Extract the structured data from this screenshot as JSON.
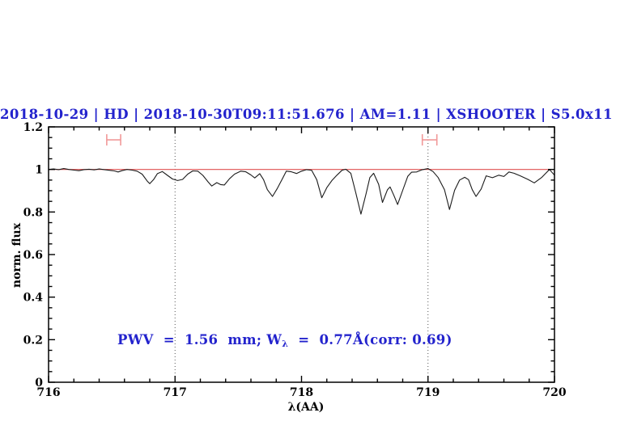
{
  "header": {
    "title": "2018-10-29 | HD | 2018-10-30T09:11:51.676 | AM=1.11 | XSHOOTER | S5.0x11",
    "title_color": "#2323cd"
  },
  "annotation": {
    "pre": "PWV  =  1.56  mm; W",
    "sub": "λ",
    "post": "  =  0.77Å(corr: 0.69)",
    "color": "#2323cd"
  },
  "chart_data": {
    "type": "line",
    "title": "2018-10-29 | HD | 2018-10-30T09:11:51.676 | AM=1.11 | XSHOOTER | S5.0x11",
    "xlabel": "λ(AA)",
    "ylabel": "norm. flux",
    "xlim": [
      716,
      720
    ],
    "ylim": [
      0,
      1.2
    ],
    "grid": "off",
    "x_major_ticks": [
      716,
      717,
      718,
      719,
      720
    ],
    "x_tick_labels": [
      "716",
      "717",
      "718",
      "719",
      "720"
    ],
    "x_minor_step": 0.2,
    "y_major_ticks": [
      0,
      0.2,
      0.4,
      0.6,
      0.8,
      1,
      1.2
    ],
    "y_tick_labels": [
      "0",
      "0.2",
      "0.4",
      "0.6",
      "0.8",
      "1",
      "1.2"
    ],
    "y_minor_step": 0.05,
    "dotted_vlines": [
      717,
      719
    ],
    "continuum_line": {
      "flux": 1.0,
      "color": "#e05050"
    },
    "range_markers": [
      {
        "x_start": 716.46,
        "x_end": 716.57,
        "y": 1.139,
        "color": "#f19999"
      },
      {
        "x_start": 718.955,
        "x_end": 719.07,
        "y": 1.139,
        "color": "#f19999"
      }
    ],
    "frame_color": "#000000",
    "dotted_line_color": "#555555",
    "series": [
      {
        "name": "normalized telluric spectrum",
        "color": "#1b1b1b",
        "points": [
          [
            716.0,
            1.0
          ],
          [
            716.04,
            1.002
          ],
          [
            716.08,
            0.999
          ],
          [
            716.12,
            1.004
          ],
          [
            716.16,
            1.0
          ],
          [
            716.2,
            0.997
          ],
          [
            716.24,
            0.994
          ],
          [
            716.28,
            0.999
          ],
          [
            716.32,
            1.001
          ],
          [
            716.36,
            0.998
          ],
          [
            716.4,
            1.002
          ],
          [
            716.44,
            0.999
          ],
          [
            716.48,
            0.996
          ],
          [
            716.52,
            0.993
          ],
          [
            716.55,
            0.988
          ],
          [
            716.58,
            0.994
          ],
          [
            716.62,
            1.0
          ],
          [
            716.66,
            0.997
          ],
          [
            716.7,
            0.992
          ],
          [
            716.74,
            0.978
          ],
          [
            716.78,
            0.945
          ],
          [
            716.8,
            0.933
          ],
          [
            716.83,
            0.952
          ],
          [
            716.86,
            0.98
          ],
          [
            716.9,
            0.99
          ],
          [
            716.94,
            0.972
          ],
          [
            716.98,
            0.955
          ],
          [
            717.02,
            0.948
          ],
          [
            717.06,
            0.953
          ],
          [
            717.1,
            0.978
          ],
          [
            717.14,
            0.993
          ],
          [
            717.18,
            0.992
          ],
          [
            717.22,
            0.972
          ],
          [
            717.26,
            0.942
          ],
          [
            717.29,
            0.922
          ],
          [
            717.33,
            0.938
          ],
          [
            717.36,
            0.929
          ],
          [
            717.39,
            0.927
          ],
          [
            717.43,
            0.956
          ],
          [
            717.47,
            0.978
          ],
          [
            717.52,
            0.992
          ],
          [
            717.56,
            0.989
          ],
          [
            717.6,
            0.974
          ],
          [
            717.63,
            0.96
          ],
          [
            717.67,
            0.98
          ],
          [
            717.7,
            0.952
          ],
          [
            717.73,
            0.905
          ],
          [
            717.77,
            0.873
          ],
          [
            717.81,
            0.912
          ],
          [
            717.85,
            0.958
          ],
          [
            717.88,
            0.992
          ],
          [
            717.92,
            0.989
          ],
          [
            717.96,
            0.981
          ],
          [
            718.0,
            0.992
          ],
          [
            718.04,
            0.999
          ],
          [
            718.08,
            0.996
          ],
          [
            718.12,
            0.952
          ],
          [
            718.16,
            0.867
          ],
          [
            718.2,
            0.915
          ],
          [
            718.24,
            0.948
          ],
          [
            718.28,
            0.973
          ],
          [
            718.32,
            0.996
          ],
          [
            718.35,
            1.001
          ],
          [
            718.39,
            0.982
          ],
          [
            718.43,
            0.888
          ],
          [
            718.47,
            0.79
          ],
          [
            718.51,
            0.885
          ],
          [
            718.54,
            0.962
          ],
          [
            718.57,
            0.982
          ],
          [
            718.61,
            0.93
          ],
          [
            718.64,
            0.845
          ],
          [
            718.68,
            0.905
          ],
          [
            718.7,
            0.918
          ],
          [
            718.73,
            0.878
          ],
          [
            718.76,
            0.835
          ],
          [
            718.8,
            0.902
          ],
          [
            718.84,
            0.968
          ],
          [
            718.87,
            0.987
          ],
          [
            718.91,
            0.988
          ],
          [
            718.95,
            0.998
          ],
          [
            719.0,
            1.004
          ],
          [
            719.04,
            0.99
          ],
          [
            719.08,
            0.962
          ],
          [
            719.13,
            0.905
          ],
          [
            719.17,
            0.812
          ],
          [
            719.21,
            0.902
          ],
          [
            719.25,
            0.95
          ],
          [
            719.29,
            0.963
          ],
          [
            719.32,
            0.952
          ],
          [
            719.35,
            0.905
          ],
          [
            719.38,
            0.873
          ],
          [
            719.42,
            0.908
          ],
          [
            719.46,
            0.97
          ],
          [
            719.51,
            0.961
          ],
          [
            719.56,
            0.973
          ],
          [
            719.6,
            0.967
          ],
          [
            719.64,
            0.988
          ],
          [
            719.68,
            0.982
          ],
          [
            719.73,
            0.97
          ],
          [
            719.79,
            0.953
          ],
          [
            719.84,
            0.937
          ],
          [
            719.9,
            0.963
          ],
          [
            719.96,
            1.0
          ],
          [
            720.0,
            0.973
          ]
        ]
      }
    ],
    "annotation_text": "PWV  =  1.56  mm; Wλ  =  0.77Å(corr: 0.69)"
  }
}
